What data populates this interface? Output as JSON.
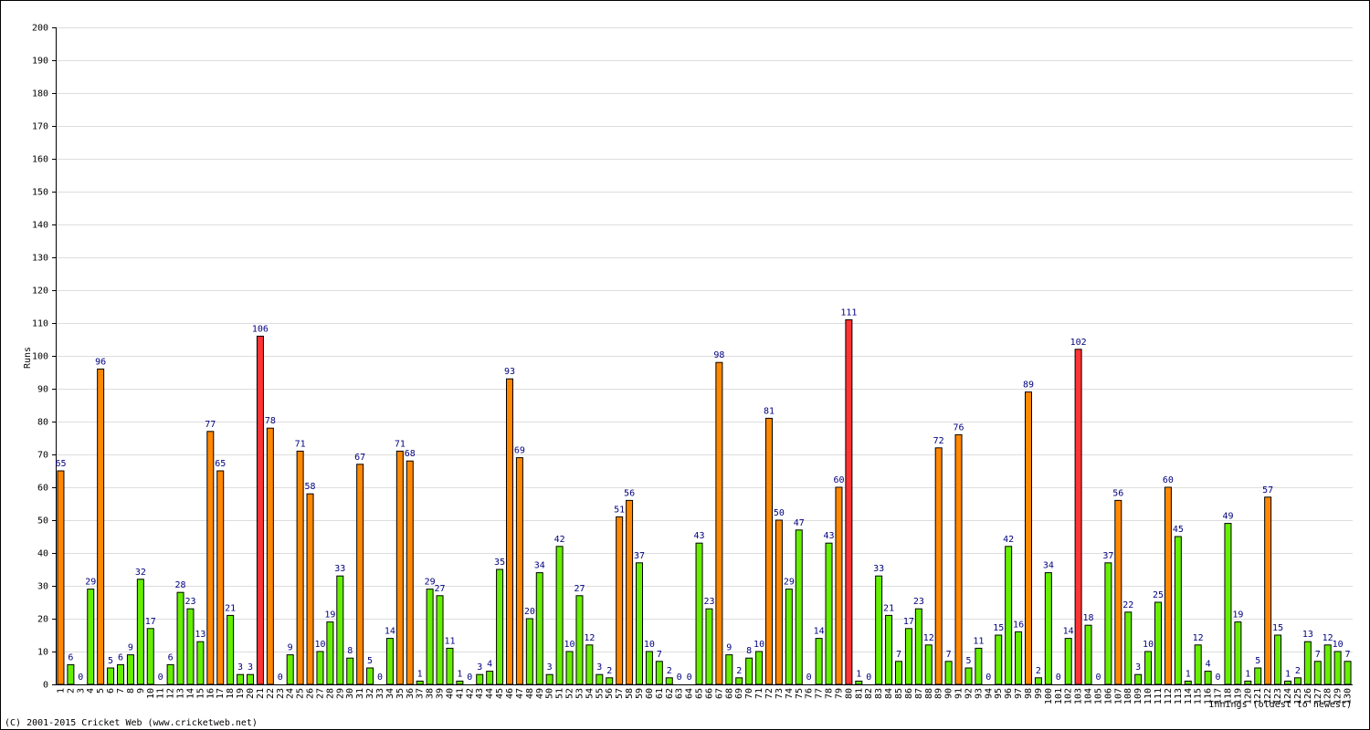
{
  "chart_data": {
    "type": "bar",
    "y_label": "Runs",
    "x_label": "Innings (oldest to newest)",
    "footer": "(C) 2001-2015 Cricket Web (www.cricketweb.net)",
    "categories": [
      "1",
      "2",
      "3",
      "4",
      "5",
      "6",
      "7",
      "8",
      "9",
      "10",
      "11",
      "12",
      "13",
      "14",
      "15",
      "16",
      "17",
      "18",
      "19",
      "20",
      "21",
      "22",
      "23",
      "24",
      "25",
      "26",
      "27",
      "28",
      "29",
      "30",
      "31",
      "32",
      "33",
      "34",
      "35",
      "36",
      "37",
      "38",
      "39",
      "40",
      "41",
      "42",
      "43",
      "44",
      "45",
      "46",
      "47",
      "48",
      "49",
      "50",
      "51",
      "52",
      "53",
      "54",
      "55",
      "56",
      "57",
      "58",
      "59",
      "60",
      "61",
      "62",
      "63",
      "64",
      "65",
      "66",
      "67",
      "68",
      "69",
      "70",
      "71",
      "72",
      "73",
      "74",
      "75",
      "76",
      "77",
      "78",
      "79",
      "80",
      "81",
      "82",
      "83",
      "84",
      "85",
      "86",
      "87",
      "88",
      "89",
      "90",
      "91",
      "92",
      "93",
      "94",
      "95",
      "96",
      "97",
      "98",
      "99",
      "100",
      "101",
      "102",
      "103",
      "104",
      "105",
      "106",
      "107",
      "108",
      "109",
      "110",
      "111",
      "112",
      "113",
      "114",
      "115",
      "116",
      "117",
      "118",
      "119",
      "120",
      "121",
      "122",
      "123",
      "124",
      "125",
      "126",
      "127",
      "128",
      "129",
      "130"
    ],
    "values": [
      65,
      6,
      0,
      29,
      96,
      5,
      6,
      9,
      32,
      17,
      0,
      6,
      28,
      23,
      13,
      77,
      65,
      21,
      3,
      3,
      106,
      78,
      0,
      9,
      71,
      58,
      10,
      19,
      33,
      8,
      67,
      5,
      0,
      14,
      71,
      68,
      1,
      29,
      27,
      11,
      1,
      0,
      3,
      4,
      35,
      93,
      69,
      20,
      34,
      3,
      42,
      10,
      27,
      12,
      3,
      2,
      51,
      56,
      37,
      10,
      7,
      2,
      0,
      0,
      43,
      23,
      98,
      9,
      2,
      8,
      10,
      81,
      50,
      29,
      47,
      0,
      14,
      43,
      60,
      111,
      1,
      0,
      33,
      21,
      7,
      17,
      23,
      12,
      72,
      7,
      76,
      5,
      11,
      0,
      15,
      42,
      16,
      89,
      2,
      34,
      0,
      14,
      102,
      18,
      0,
      37,
      56,
      22,
      3,
      10,
      25,
      60,
      45,
      1,
      12,
      4,
      0,
      49,
      19,
      1,
      5,
      57,
      15,
      1,
      2,
      13,
      7,
      12,
      10,
      7
    ],
    "colors": [
      "#ff8800",
      "#66ee00",
      "#66ee00",
      "#66ee00",
      "#ff8800",
      "#66ee00",
      "#66ee00",
      "#66ee00",
      "#66ee00",
      "#66ee00",
      "#66ee00",
      "#66ee00",
      "#66ee00",
      "#66ee00",
      "#66ee00",
      "#ff8800",
      "#ff8800",
      "#66ee00",
      "#66ee00",
      "#66ee00",
      "#ff3333",
      "#ff8800",
      "#66ee00",
      "#66ee00",
      "#ff8800",
      "#ff8800",
      "#66ee00",
      "#66ee00",
      "#66ee00",
      "#66ee00",
      "#ff8800",
      "#66ee00",
      "#66ee00",
      "#66ee00",
      "#ff8800",
      "#ff8800",
      "#66ee00",
      "#66ee00",
      "#66ee00",
      "#66ee00",
      "#66ee00",
      "#66ee00",
      "#66ee00",
      "#66ee00",
      "#66ee00",
      "#ff8800",
      "#ff8800",
      "#66ee00",
      "#66ee00",
      "#66ee00",
      "#66ee00",
      "#66ee00",
      "#66ee00",
      "#66ee00",
      "#66ee00",
      "#66ee00",
      "#ff8800",
      "#ff8800",
      "#66ee00",
      "#66ee00",
      "#66ee00",
      "#66ee00",
      "#66ee00",
      "#66ee00",
      "#66ee00",
      "#66ee00",
      "#ff8800",
      "#66ee00",
      "#66ee00",
      "#66ee00",
      "#66ee00",
      "#ff8800",
      "#ff8800",
      "#66ee00",
      "#66ee00",
      "#66ee00",
      "#66ee00",
      "#66ee00",
      "#ff8800",
      "#ff3333",
      "#66ee00",
      "#66ee00",
      "#66ee00",
      "#66ee00",
      "#66ee00",
      "#66ee00",
      "#66ee00",
      "#66ee00",
      "#ff8800",
      "#66ee00",
      "#ff8800",
      "#66ee00",
      "#66ee00",
      "#66ee00",
      "#66ee00",
      "#66ee00",
      "#66ee00",
      "#ff8800",
      "#66ee00",
      "#66ee00",
      "#66ee00",
      "#66ee00",
      "#ff3333",
      "#66ee00",
      "#66ee00",
      "#66ee00",
      "#ff8800",
      "#66ee00",
      "#66ee00",
      "#66ee00",
      "#66ee00",
      "#ff8800",
      "#66ee00",
      "#66ee00",
      "#66ee00",
      "#66ee00",
      "#66ee00",
      "#66ee00",
      "#66ee00",
      "#66ee00",
      "#66ee00",
      "#ff8800",
      "#66ee00",
      "#66ee00",
      "#66ee00",
      "#66ee00",
      "#66ee00",
      "#66ee00",
      "#66ee00",
      "#66ee00"
    ],
    "ylim": [
      0,
      200
    ],
    "yticks": [
      0,
      10,
      20,
      30,
      40,
      50,
      60,
      70,
      80,
      90,
      100,
      110,
      120,
      130,
      140,
      150,
      160,
      170,
      180,
      190,
      200
    ],
    "grid": true
  }
}
